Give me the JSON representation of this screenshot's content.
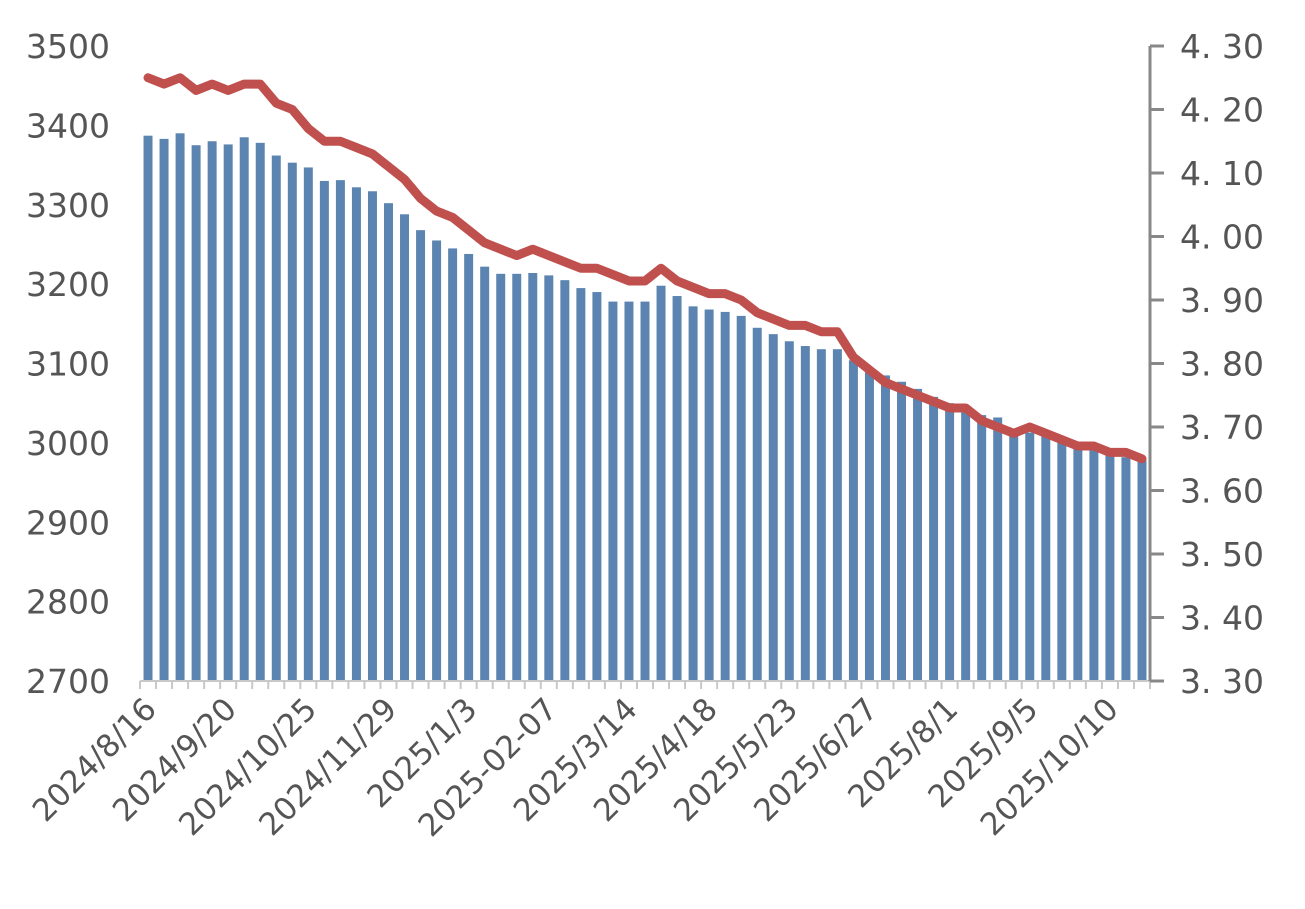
{
  "chart_data": {
    "type": "bar",
    "title": "",
    "xlabel": "",
    "ylabel": "",
    "y2label": "",
    "ylim": [
      2700,
      3500
    ],
    "y2lim": [
      3.3,
      4.3
    ],
    "yticks": [
      "2700",
      "2800",
      "2900",
      "3000",
      "3100",
      "3200",
      "3300",
      "3400",
      "3500"
    ],
    "y2ticks": [
      "3. 30",
      "3. 40",
      "3. 50",
      "3. 60",
      "3. 70",
      "3. 80",
      "3. 90",
      "4. 00",
      "4. 10",
      "4. 20",
      "4. 30"
    ],
    "xticks": [
      "2024/8/16",
      "2024/9/20",
      "2024/10/25",
      "2024/11/29",
      "2025/1/3",
      "2025-02-07",
      "2025/3/14",
      "2025/4/18",
      "2025/5/23",
      "2025/6/27",
      "2025/8/1",
      "2025/9/5",
      "2025/10/10"
    ],
    "x_tick_every": 5,
    "grid": false,
    "legend": "none",
    "colors": {
      "bars": "#5b84b1",
      "line": "#c0504d",
      "axis": "#888888"
    },
    "series": [
      {
        "type": "bar",
        "axis": "left",
        "values": [
          3387,
          3383,
          3390,
          3375,
          3380,
          3376,
          3385,
          3378,
          3362,
          3353,
          3347,
          3330,
          3331,
          3322,
          3317,
          3302,
          3288,
          3268,
          3255,
          3245,
          3238,
          3222,
          3213,
          3213,
          3214,
          3211,
          3205,
          3195,
          3190,
          3178,
          3178,
          3178,
          3198,
          3185,
          3172,
          3168,
          3165,
          3160,
          3145,
          3137,
          3128,
          3122,
          3118,
          3118,
          3104,
          3090,
          3085,
          3077,
          3068,
          3058,
          3050,
          3043,
          3035,
          3032,
          3018,
          3013,
          3010,
          3002,
          2995,
          2992,
          2990,
          2982,
          2978
        ]
      },
      {
        "type": "line",
        "axis": "right",
        "values": [
          4.25,
          4.24,
          4.25,
          4.23,
          4.24,
          4.23,
          4.24,
          4.24,
          4.21,
          4.2,
          4.17,
          4.15,
          4.15,
          4.14,
          4.13,
          4.11,
          4.09,
          4.06,
          4.04,
          4.03,
          4.01,
          3.99,
          3.98,
          3.97,
          3.98,
          3.97,
          3.96,
          3.95,
          3.95,
          3.94,
          3.93,
          3.93,
          3.95,
          3.93,
          3.92,
          3.91,
          3.91,
          3.9,
          3.88,
          3.87,
          3.86,
          3.86,
          3.85,
          3.85,
          3.81,
          3.79,
          3.77,
          3.76,
          3.75,
          3.74,
          3.73,
          3.73,
          3.71,
          3.7,
          3.69,
          3.7,
          3.69,
          3.68,
          3.67,
          3.67,
          3.66,
          3.66,
          3.65
        ]
      }
    ]
  }
}
